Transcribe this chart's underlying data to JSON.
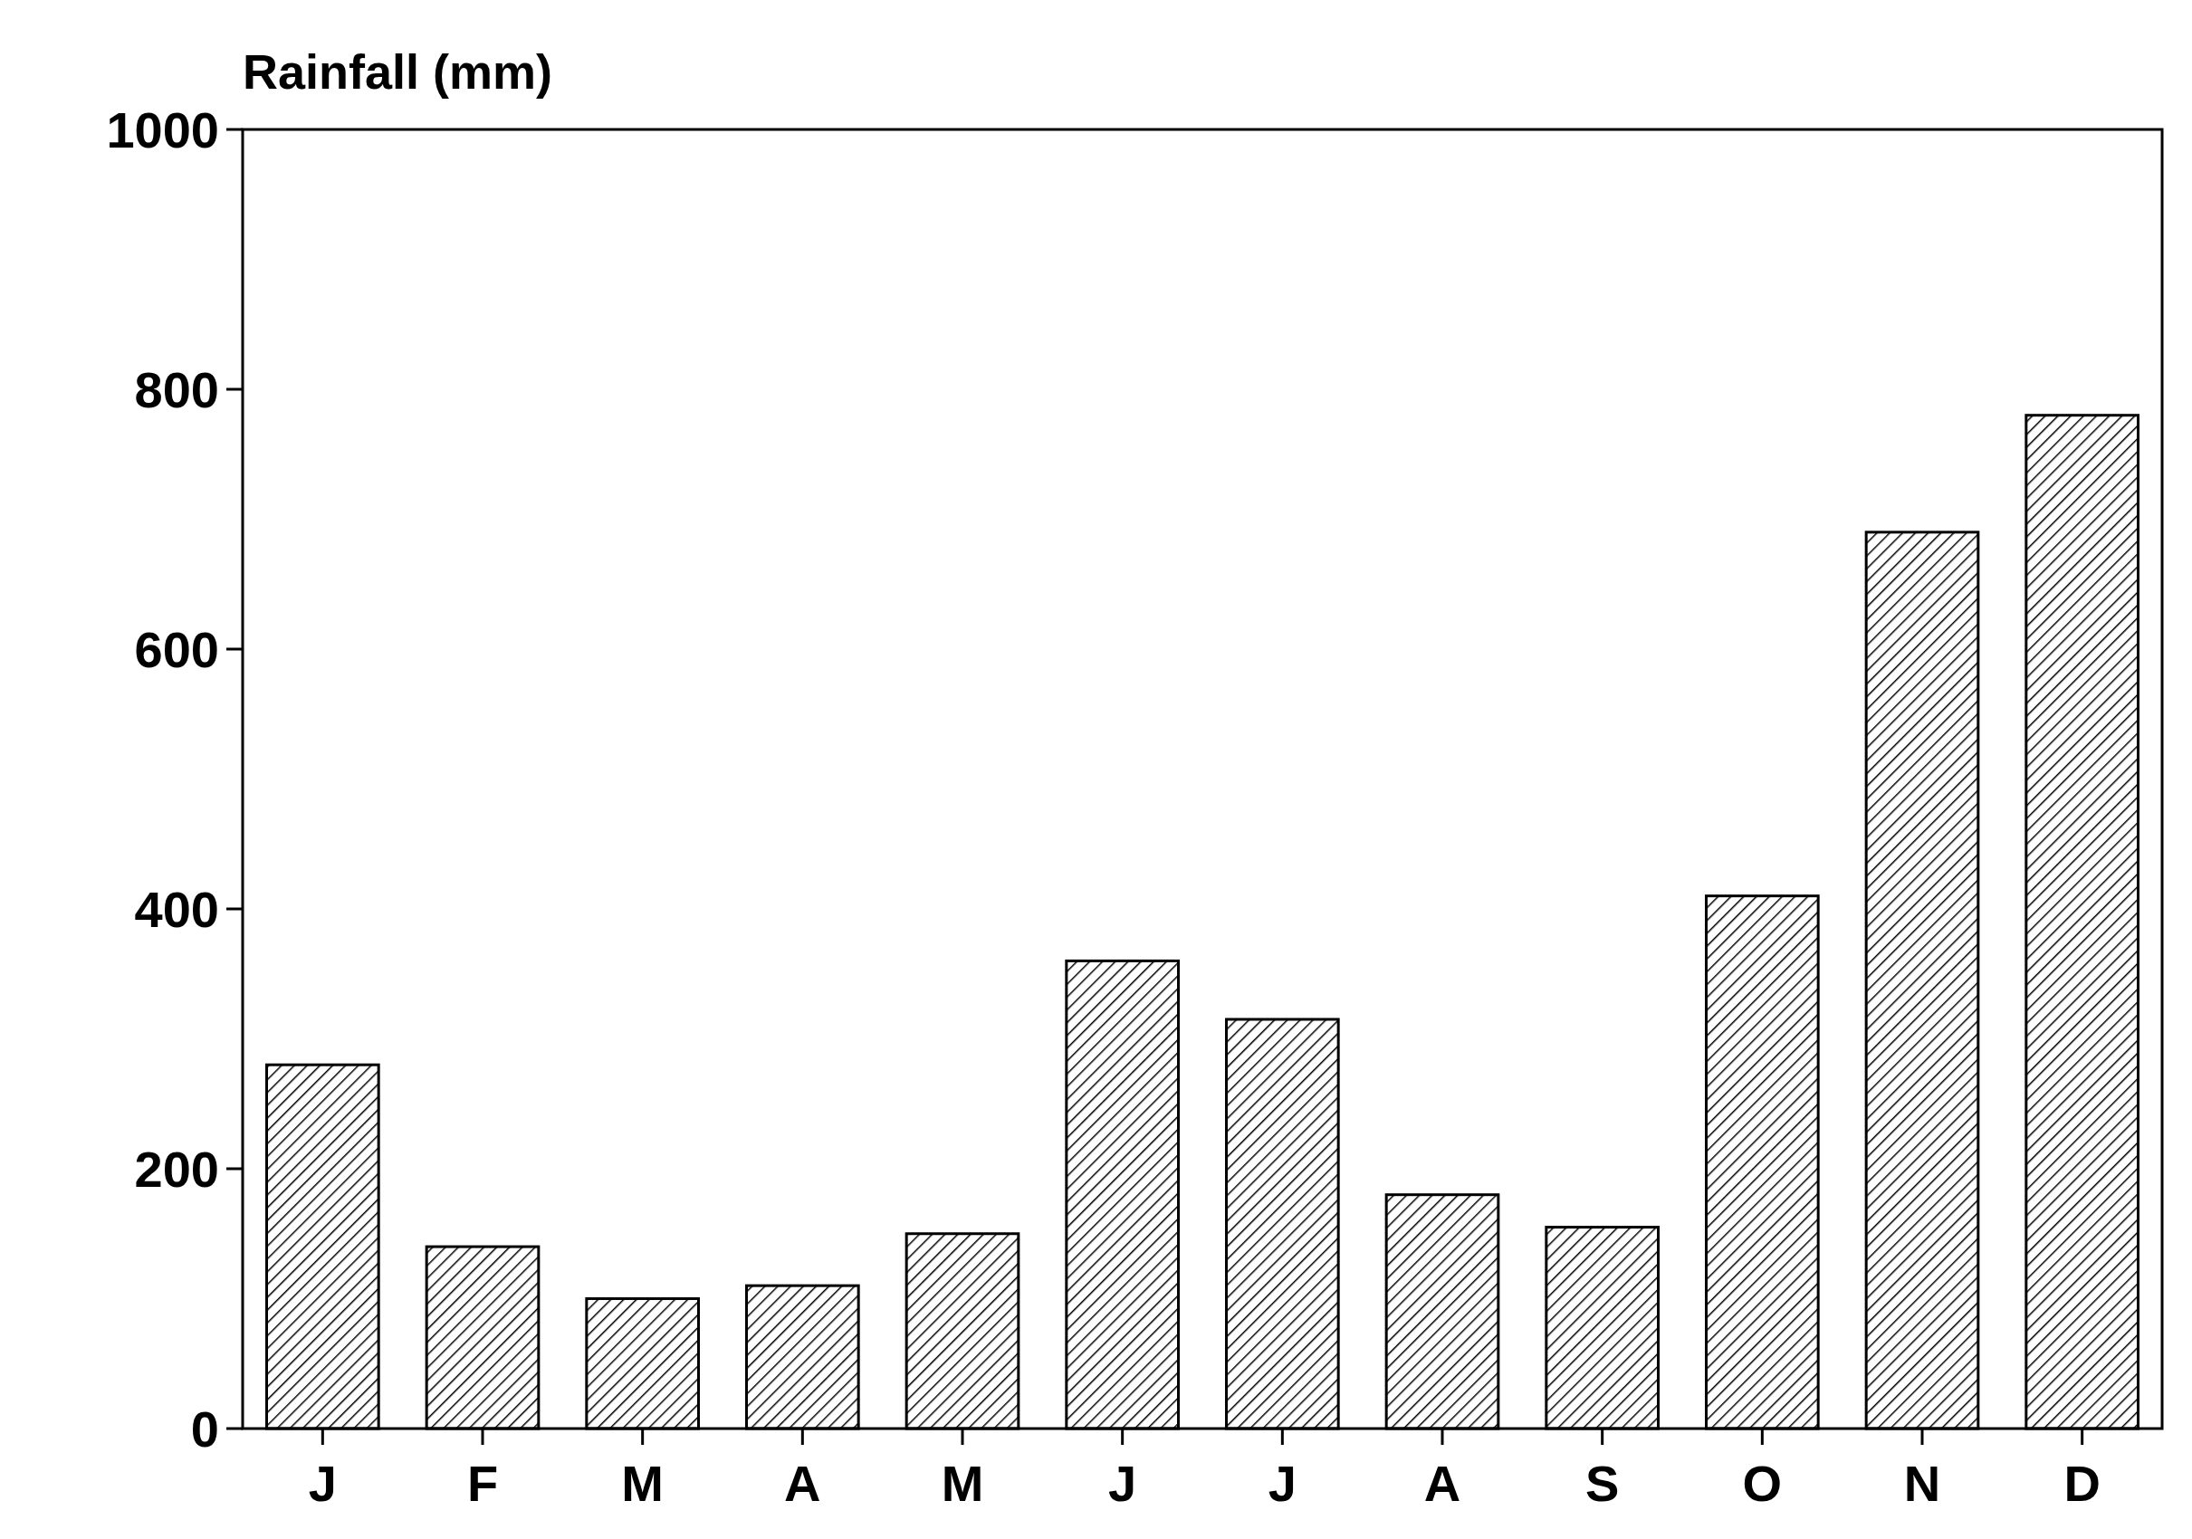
{
  "chart_data": {
    "type": "bar",
    "ylabel": "Rainfall (mm)",
    "categories": [
      "J",
      "F",
      "M",
      "A",
      "M",
      "J",
      "J",
      "A",
      "S",
      "O",
      "N",
      "D"
    ],
    "values": [
      280,
      140,
      100,
      110,
      150,
      360,
      315,
      180,
      155,
      410,
      690,
      780
    ],
    "ylim": [
      0,
      1000
    ],
    "yticks": [
      0,
      200,
      400,
      600,
      800,
      1000
    ],
    "grid": false
  }
}
